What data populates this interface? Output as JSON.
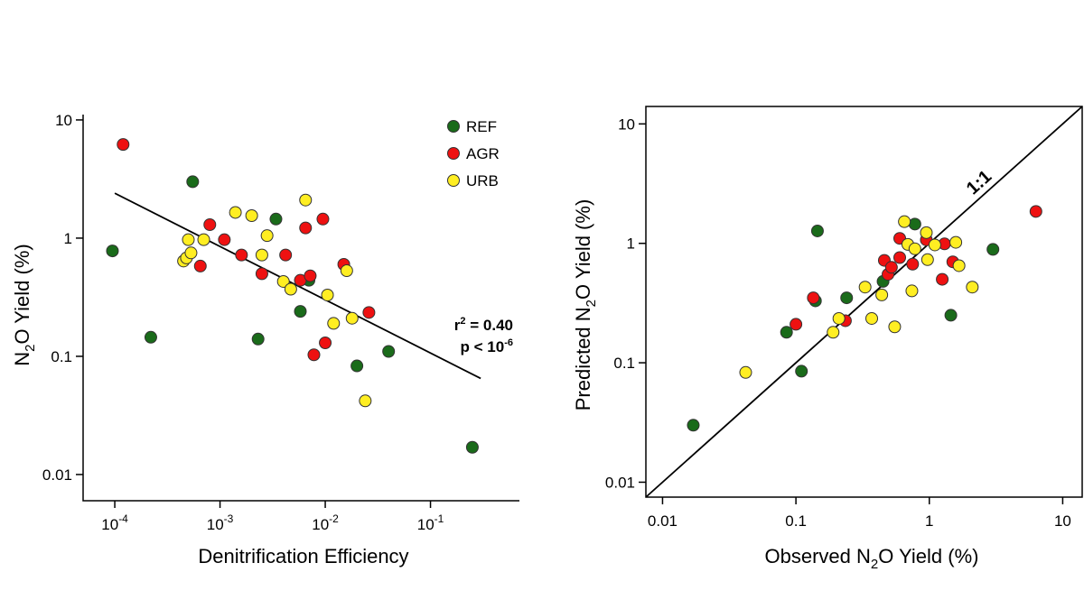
{
  "colors": {
    "REF": "#1a6b1a",
    "AGR": "#ee1111",
    "URB": "#ffee22",
    "outline": "#333333"
  },
  "chart_data": [
    {
      "type": "scatter",
      "title": "",
      "xlabel": "Denitrification Efficiency",
      "ylabel": {
        "pre": "N",
        "sub": "2",
        "post": "O Yield (%)"
      },
      "xscale": "log",
      "yscale": "log",
      "xlim": [
        5e-05,
        0.7
      ],
      "ylim": [
        0.006,
        13
      ],
      "xticks": [
        {
          "value": 0.0001,
          "base": "10",
          "exp": "-4"
        },
        {
          "value": 0.001,
          "base": "10",
          "exp": "-3"
        },
        {
          "value": 0.01,
          "base": "10",
          "exp": "-2"
        },
        {
          "value": 0.1,
          "base": "10",
          "exp": "-1"
        }
      ],
      "yticks": [
        {
          "value": 0.01,
          "label": "0.01"
        },
        {
          "value": 0.1,
          "label": "0.1"
        },
        {
          "value": 1,
          "label": "1"
        },
        {
          "value": 10,
          "label": "10"
        }
      ],
      "legend": {
        "placement": "top-right",
        "entries": [
          {
            "key": "REF",
            "label": "REF"
          },
          {
            "key": "AGR",
            "label": "AGR"
          },
          {
            "key": "URB",
            "label": "URB"
          }
        ]
      },
      "annotation": {
        "r2_pre": "r",
        "r2_sup": "2",
        "r2_post": " = 0.40",
        "p_pre": "p < 10",
        "p_sup": "-6"
      },
      "fit_line": {
        "x": [
          0.0001,
          0.3
        ],
        "y": [
          2.4,
          0.065
        ]
      },
      "series": [
        {
          "key": "REF",
          "points": [
            [
              9.5e-05,
              0.78
            ],
            [
              0.00022,
              0.145
            ],
            [
              0.00055,
              3.0
            ],
            [
              0.0023,
              0.14
            ],
            [
              0.0034,
              1.45
            ],
            [
              0.0058,
              0.24
            ],
            [
              0.007,
              0.44
            ],
            [
              0.02,
              0.083
            ],
            [
              0.04,
              0.11
            ],
            [
              0.25,
              0.017
            ]
          ]
        },
        {
          "key": "AGR",
          "points": [
            [
              0.00012,
              6.2
            ],
            [
              0.00065,
              0.58
            ],
            [
              0.0008,
              1.3
            ],
            [
              0.0011,
              0.97
            ],
            [
              0.0016,
              0.72
            ],
            [
              0.0025,
              0.5
            ],
            [
              0.0042,
              0.72
            ],
            [
              0.0058,
              0.44
            ],
            [
              0.0065,
              1.22
            ],
            [
              0.0072,
              0.48
            ],
            [
              0.0078,
              0.103
            ],
            [
              0.0095,
              1.45
            ],
            [
              0.01,
              0.13
            ],
            [
              0.015,
              0.6
            ],
            [
              0.026,
              0.235
            ]
          ]
        },
        {
          "key": "URB",
          "points": [
            [
              0.00045,
              0.64
            ],
            [
              0.00048,
              0.68
            ],
            [
              0.0005,
              0.97
            ],
            [
              0.00053,
              0.75
            ],
            [
              0.0007,
              0.97
            ],
            [
              0.0014,
              1.65
            ],
            [
              0.002,
              1.55
            ],
            [
              0.0025,
              0.72
            ],
            [
              0.0028,
              1.05
            ],
            [
              0.004,
              0.43
            ],
            [
              0.0047,
              0.37
            ],
            [
              0.0065,
              2.1
            ],
            [
              0.0105,
              0.33
            ],
            [
              0.012,
              0.19
            ],
            [
              0.016,
              0.53
            ],
            [
              0.018,
              0.21
            ],
            [
              0.024,
              0.042
            ]
          ]
        }
      ]
    },
    {
      "type": "scatter",
      "title": "",
      "xlabel": {
        "pre": "Observed N",
        "sub": "2",
        "post": "O Yield (%)"
      },
      "ylabel": {
        "pre": "Predicted N",
        "sub": "2",
        "post": "O Yield (%)"
      },
      "xscale": "log",
      "yscale": "log",
      "xlim": [
        0.0075,
        14
      ],
      "ylim": [
        0.0075,
        14
      ],
      "xticks": [
        {
          "value": 0.01,
          "label": "0.01"
        },
        {
          "value": 0.1,
          "label": "0.1"
        },
        {
          "value": 1,
          "label": "1"
        },
        {
          "value": 10,
          "label": "10"
        }
      ],
      "yticks": [
        {
          "value": 0.01,
          "label": "0.01"
        },
        {
          "value": 0.1,
          "label": "0.1"
        },
        {
          "value": 1,
          "label": "1"
        },
        {
          "value": 10,
          "label": "10"
        }
      ],
      "reference_line_label": "1:1",
      "series": [
        {
          "key": "REF",
          "points": [
            [
              0.017,
              0.03
            ],
            [
              0.085,
              0.18
            ],
            [
              0.11,
              0.085
            ],
            [
              0.14,
              0.33
            ],
            [
              0.145,
              1.27
            ],
            [
              0.24,
              0.35
            ],
            [
              0.45,
              0.48
            ],
            [
              0.78,
              1.45
            ],
            [
              1.45,
              0.25
            ],
            [
              3.0,
              0.89
            ]
          ]
        },
        {
          "key": "AGR",
          "points": [
            [
              0.1,
              0.21
            ],
            [
              0.135,
              0.35
            ],
            [
              0.235,
              0.225
            ],
            [
              0.46,
              0.72
            ],
            [
              0.49,
              0.55
            ],
            [
              0.52,
              0.63
            ],
            [
              0.6,
              0.76
            ],
            [
              0.6,
              1.1
            ],
            [
              0.75,
              0.67
            ],
            [
              0.95,
              1.07
            ],
            [
              1.25,
              0.5
            ],
            [
              1.3,
              0.99
            ],
            [
              1.5,
              0.7
            ],
            [
              6.3,
              1.85
            ]
          ]
        },
        {
          "key": "URB",
          "points": [
            [
              0.042,
              0.083
            ],
            [
              0.19,
              0.18
            ],
            [
              0.21,
              0.235
            ],
            [
              0.33,
              0.43
            ],
            [
              0.37,
              0.235
            ],
            [
              0.44,
              0.37
            ],
            [
              0.55,
              0.2
            ],
            [
              0.65,
              1.52
            ],
            [
              0.69,
              0.98
            ],
            [
              0.74,
              0.4
            ],
            [
              0.78,
              0.9
            ],
            [
              0.95,
              1.23
            ],
            [
              0.97,
              0.73
            ],
            [
              1.1,
              0.97
            ],
            [
              1.58,
              1.02
            ],
            [
              1.67,
              0.65
            ],
            [
              2.1,
              0.43
            ]
          ]
        }
      ]
    }
  ]
}
